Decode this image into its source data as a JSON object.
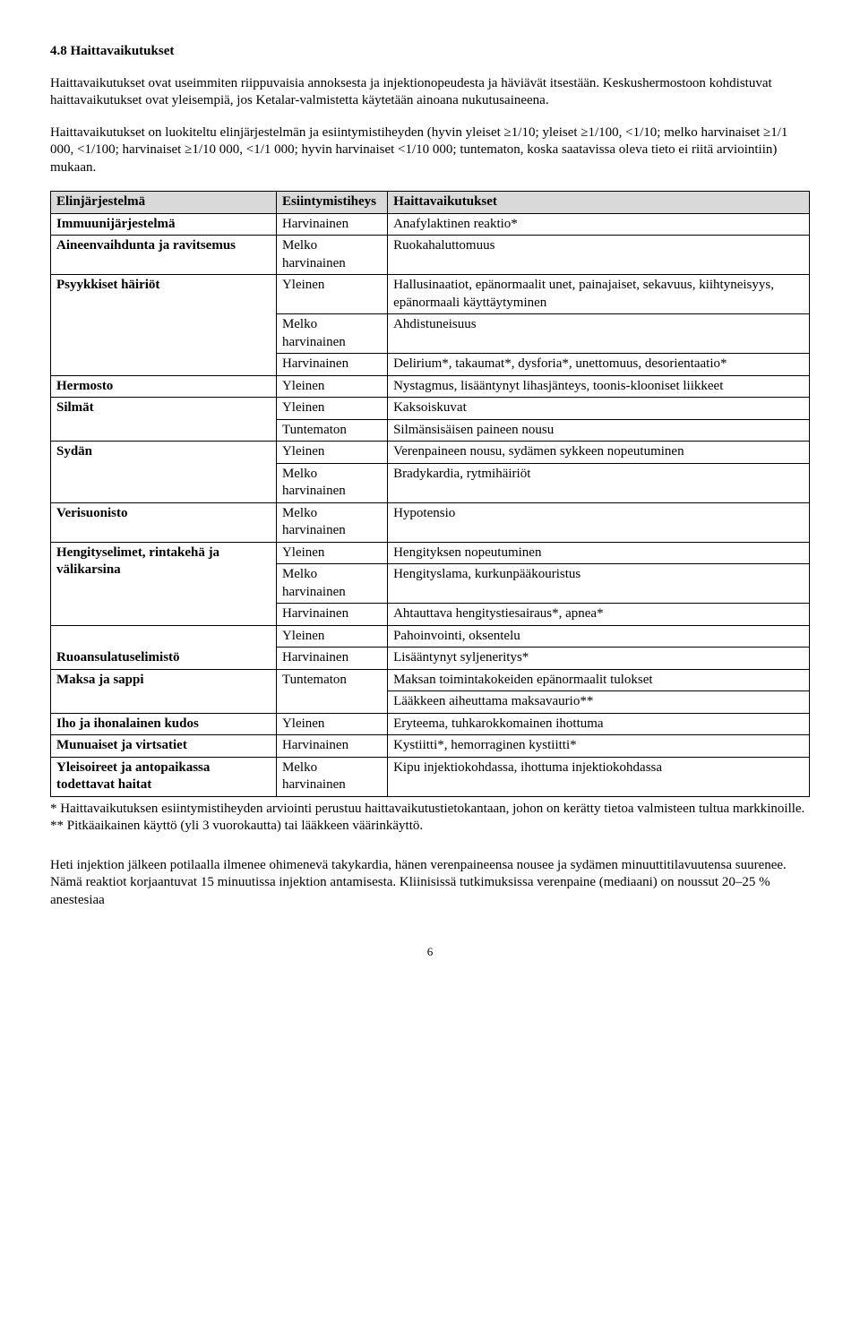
{
  "heading": "4.8 Haittavaikutukset",
  "para1": "Haittavaikutukset ovat useimmiten riippuvaisia annoksesta ja injektionopeudesta ja häviävät itsestään. Keskushermostoon kohdistuvat haittavaikutukset ovat yleisempiä, jos Ketalar-valmistetta käytetään ainoana nukutusaineena.",
  "para2": "Haittavaikutukset on luokiteltu elinjärjestelmän ja esiintymistiheyden (hyvin yleiset ≥1/10; yleiset ≥1/100, <1/10; melko harvinaiset ≥1/1 000, <1/100; harvinaiset ≥1/10 000, <1/1 000; hyvin harvinaiset <1/10 000; tuntematon, koska saatavissa oleva tieto ei riitä arviointiin) mukaan.",
  "thead": {
    "c1": "Elinjärjestelmä",
    "c2": "Esiintymistiheys",
    "c3": "Haittavaikutukset"
  },
  "rows": {
    "r1": {
      "sys": "Immuunijärjestelmä",
      "freq": "Harvinainen",
      "adv": "Anafylaktinen reaktio*"
    },
    "r2": {
      "sys": "Aineenvaihdunta ja ravitsemus",
      "freq": "Melko harvinainen",
      "adv": "Ruokahaluttomuus"
    },
    "r3": {
      "sys": "Psyykkiset häiriöt",
      "freq": "Yleinen",
      "adv": "Hallusinaatiot, epänormaalit unet, painajaiset, sekavuus, kiihtyneisyys, epänormaali käyttäytyminen"
    },
    "r4": {
      "freq": "Melko harvinainen",
      "adv": "Ahdistuneisuus"
    },
    "r5": {
      "freq": "Harvinainen",
      "adv": "Delirium*, takaumat*, dysforia*, unettomuus, desorientaatio*"
    },
    "r6": {
      "sys": "Hermosto",
      "freq": "Yleinen",
      "adv": "Nystagmus, lisääntynyt lihasjänteys, toonis-klooniset liikkeet"
    },
    "r7": {
      "sys": "Silmät",
      "freq": "Yleinen",
      "adv": "Kaksoiskuvat"
    },
    "r8": {
      "freq": "Tuntematon",
      "adv": "Silmänsisäisen paineen nousu"
    },
    "r9": {
      "sys": "Sydän",
      "freq": "Yleinen",
      "adv": "Verenpaineen nousu, sydämen sykkeen nopeutuminen"
    },
    "r10": {
      "freq": "Melko harvinainen",
      "adv": "Bradykardia, rytmihäiriöt"
    },
    "r11": {
      "sys": "Verisuonisto",
      "freq": "Melko harvinainen",
      "adv": "Hypotensio"
    },
    "r12": {
      "sys": "Hengityselimet, rintakehä ja välikarsina",
      "freq": "Yleinen",
      "adv": "Hengityksen nopeutuminen"
    },
    "r13": {
      "freq": "Melko harvinainen",
      "adv": "Hengityslama, kurkunpääkouristus"
    },
    "r14": {
      "freq": "Harvinainen",
      "adv": "Ahtauttava hengitystiesairaus*, apnea*"
    },
    "r15": {
      "sys": "Ruoansulatuselimistö",
      "freq": "Yleinen",
      "adv": "Pahoinvointi, oksentelu"
    },
    "r16": {
      "freq": "Harvinainen",
      "adv": "Lisääntynyt syljeneritys*"
    },
    "r17": {
      "sys": "Maksa ja sappi",
      "freq": "Tuntematon",
      "adv": "Maksan toimintakokeiden epänormaalit tulokset"
    },
    "r18": {
      "adv": "Lääkkeen aiheuttama maksavaurio**"
    },
    "r19": {
      "sys": "Iho ja ihonalainen kudos",
      "freq": "Yleinen",
      "adv": "Eryteema, tuhkarokkomainen ihottuma"
    },
    "r20": {
      "sys": "Munuaiset ja virtsatiet",
      "freq": "Harvinainen",
      "adv": "Kystiitti*, hemorraginen kystiitti*"
    },
    "r21": {
      "sys": "Yleisoireet ja antopaikassa todettavat haitat",
      "freq": "Melko harvinainen",
      "adv": "Kipu injektiokohdassa, ihottuma injektiokohdassa"
    }
  },
  "footnote1": "* Haittavaikutuksen esiintymistiheyden arviointi perustuu haittavaikutustietokantaan, johon on kerätty tietoa valmisteen tultua markkinoille.",
  "footnote2": "** Pitkäaikainen käyttö (yli 3 vuorokautta) tai lääkkeen väärinkäyttö.",
  "para3": "Heti injektion jälkeen potilaalla ilmenee ohimenevä takykardia, hänen verenpaineensa nousee ja sydämen minuuttitilavuutensa suurenee. Nämä reaktiot korjaantuvat 15 minuutissa injektion antamisesta. Kliinisissä tutkimuksissa verenpaine (mediaani) on noussut 20–25 % anestesiaa",
  "pageNumber": "6"
}
